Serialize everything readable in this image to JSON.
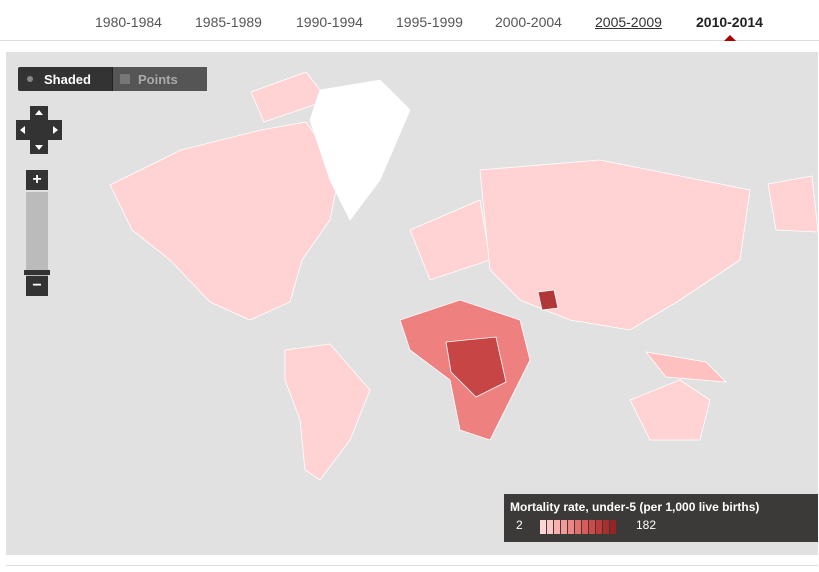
{
  "tabs": [
    "1980-1984",
    "1985-1989",
    "1990-1994",
    "1995-1999",
    "2000-2004",
    "2005-2009",
    "2010-2014"
  ],
  "map_controls": {
    "shaded": "Shaded",
    "points": "Points",
    "zoom_in": "+",
    "zoom_out": "−"
  },
  "legend": {
    "title": "Mortality rate, under-5 (per 1,000 live births)",
    "min": 2,
    "max": 182
  }
}
